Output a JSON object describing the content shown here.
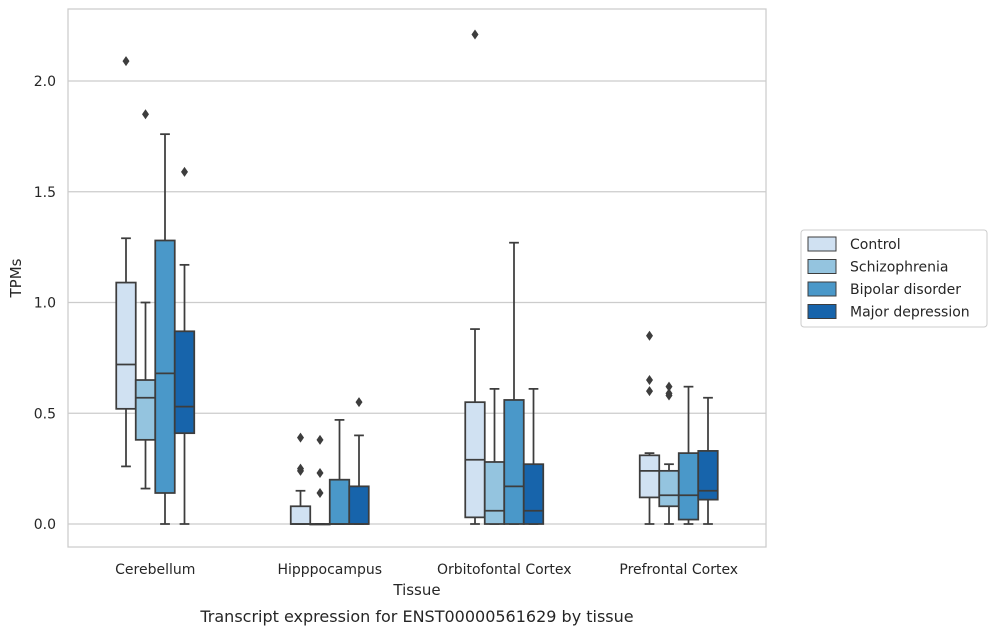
{
  "chart_data": {
    "type": "boxplot",
    "xlabel": "Tissue",
    "ylabel": "TPMs",
    "caption": "Transcript expression for ENST00000561629 by tissue",
    "ylim": [
      -0.1,
      2.35
    ],
    "yticks": [
      0.0,
      0.5,
      1.0,
      1.5,
      2.0
    ],
    "ytick_labels": [
      "0.0",
      "0.5",
      "1.0",
      "1.5",
      "2.0"
    ],
    "grid": "horizontal",
    "legend_position": "right",
    "categories": [
      "Cerebellum",
      "Hipppocampus",
      "Orbitofontal Cortex",
      "Prefrontal Cortex"
    ],
    "series": [
      {
        "name": "Control",
        "color": "#d0e1f2",
        "boxes": [
          {
            "whisker_low": 0.26,
            "q1": 0.52,
            "median": 0.72,
            "q3": 1.09,
            "whisker_high": 1.29,
            "outliers": [
              2.09
            ]
          },
          {
            "whisker_low": 0.0,
            "q1": 0.0,
            "median": 0.0,
            "q3": 0.08,
            "whisker_high": 0.15,
            "outliers": [
              0.24,
              0.25,
              0.39
            ]
          },
          {
            "whisker_low": 0.0,
            "q1": 0.03,
            "median": 0.29,
            "q3": 0.55,
            "whisker_high": 0.88,
            "outliers": [
              2.21
            ]
          },
          {
            "whisker_low": 0.0,
            "q1": 0.12,
            "median": 0.24,
            "q3": 0.31,
            "whisker_high": 0.32,
            "outliers": [
              0.6,
              0.65,
              0.85
            ]
          }
        ]
      },
      {
        "name": "Schizophrenia",
        "color": "#94c4df",
        "boxes": [
          {
            "whisker_low": 0.16,
            "q1": 0.38,
            "median": 0.57,
            "q3": 0.65,
            "whisker_high": 1.0,
            "outliers": [
              1.85
            ]
          },
          {
            "whisker_low": 0.0,
            "q1": 0.0,
            "median": 0.0,
            "q3": 0.0,
            "whisker_high": 0.0,
            "outliers": [
              0.14,
              0.23,
              0.38
            ]
          },
          {
            "whisker_low": 0.0,
            "q1": 0.0,
            "median": 0.06,
            "q3": 0.28,
            "whisker_high": 0.61,
            "outliers": []
          },
          {
            "whisker_low": 0.0,
            "q1": 0.08,
            "median": 0.13,
            "q3": 0.24,
            "whisker_high": 0.27,
            "outliers": [
              0.58,
              0.59,
              0.62
            ]
          }
        ]
      },
      {
        "name": "Bipolar disorder",
        "color": "#4a98c9",
        "boxes": [
          {
            "whisker_low": 0.0,
            "q1": 0.14,
            "median": 0.68,
            "q3": 1.28,
            "whisker_high": 1.76,
            "outliers": []
          },
          {
            "whisker_low": 0.0,
            "q1": 0.0,
            "median": 0.0,
            "q3": 0.2,
            "whisker_high": 0.47,
            "outliers": []
          },
          {
            "whisker_low": 0.0,
            "q1": 0.0,
            "median": 0.17,
            "q3": 0.56,
            "whisker_high": 1.27,
            "outliers": []
          },
          {
            "whisker_low": 0.0,
            "q1": 0.02,
            "median": 0.13,
            "q3": 0.32,
            "whisker_high": 0.62,
            "outliers": []
          }
        ]
      },
      {
        "name": "Major depression",
        "color": "#1764ab",
        "boxes": [
          {
            "whisker_low": 0.0,
            "q1": 0.41,
            "median": 0.53,
            "q3": 0.87,
            "whisker_high": 1.17,
            "outliers": [
              1.59
            ]
          },
          {
            "whisker_low": 0.0,
            "q1": 0.0,
            "median": 0.0,
            "q3": 0.17,
            "whisker_high": 0.4,
            "outliers": [
              0.55
            ]
          },
          {
            "whisker_low": 0.0,
            "q1": 0.0,
            "median": 0.06,
            "q3": 0.27,
            "whisker_high": 0.61,
            "outliers": []
          },
          {
            "whisker_low": 0.0,
            "q1": 0.11,
            "median": 0.15,
            "q3": 0.33,
            "whisker_high": 0.57,
            "outliers": []
          }
        ]
      }
    ]
  }
}
